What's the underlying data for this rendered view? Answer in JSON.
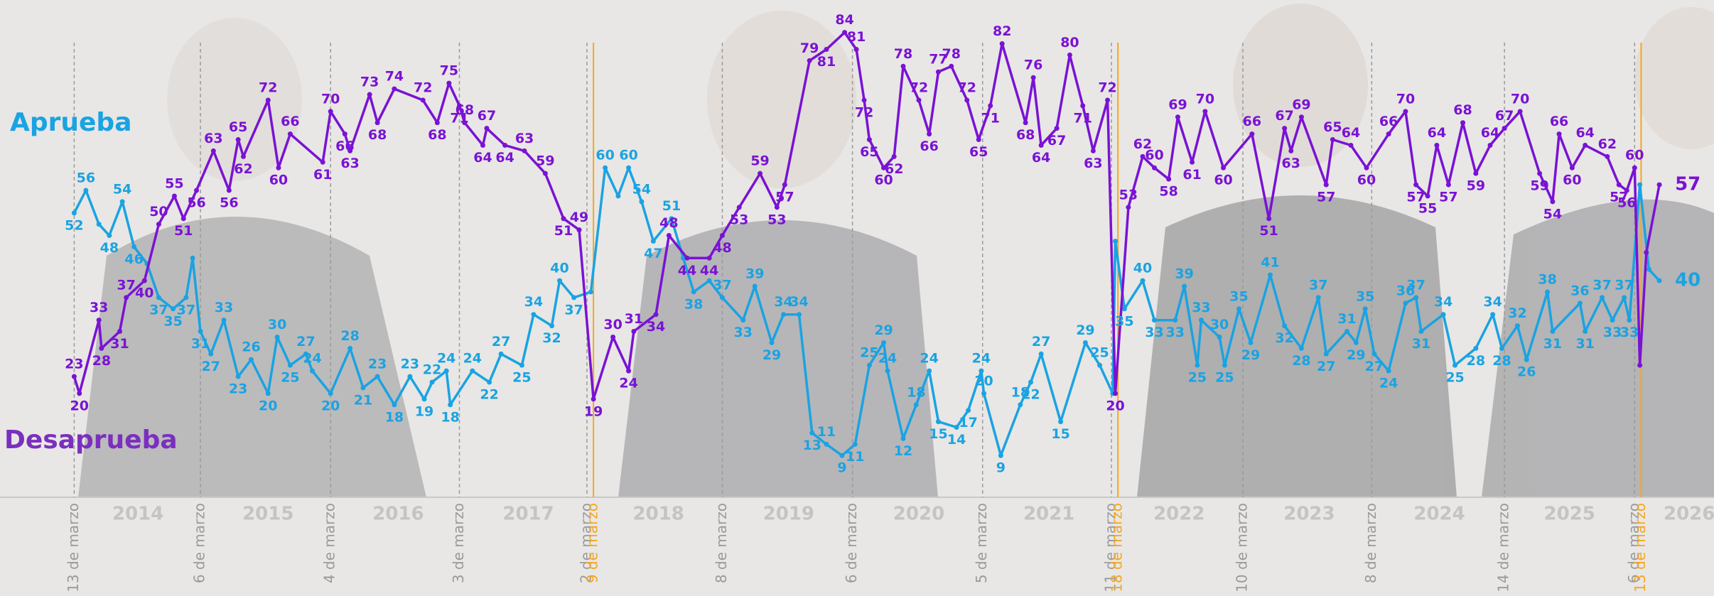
{
  "chart_data": {
    "type": "line",
    "xlim": [
      2013.61,
      2026.78
    ],
    "ylim": [
      1.6,
      89.75
    ],
    "xticks": [
      {
        "value": 2014.18,
        "label": "13 de marzo"
      },
      {
        "value": 2015.15,
        "label": "6 de marzo"
      },
      {
        "value": 2016.15,
        "label": "4 de marzo"
      },
      {
        "value": 2017.14,
        "label": "3 de marzo"
      },
      {
        "value": 2018.12,
        "label": "2 de marzo"
      },
      {
        "value": 2019.16,
        "label": "8 de marzo"
      },
      {
        "value": 2020.16,
        "label": "6 de marzo"
      },
      {
        "value": 2021.16,
        "label": "5 de marzo"
      },
      {
        "value": 2022.15,
        "label": "11 de marzo"
      },
      {
        "value": 2023.16,
        "label": "10 de marzo"
      },
      {
        "value": 2024.15,
        "label": "8 de marzo"
      },
      {
        "value": 2025.17,
        "label": "14 de marzo"
      },
      {
        "value": 2026.17,
        "label": "6 de marzo"
      }
    ],
    "tick_color": "#9a9a9a",
    "highlight_ticks": [
      {
        "value": 2018.17,
        "label": "9 de marzo"
      },
      {
        "value": 2022.2,
        "label": "18 de marzo"
      },
      {
        "value": 2026.22,
        "label": "13 de marzo"
      }
    ],
    "highlight_color": "#f5a623",
    "year_labels": [
      {
        "value": 2014.67,
        "label": "2014"
      },
      {
        "value": 2015.67,
        "label": "2015"
      },
      {
        "value": 2016.67,
        "label": "2016"
      },
      {
        "value": 2017.67,
        "label": "2017"
      },
      {
        "value": 2018.67,
        "label": "2018"
      },
      {
        "value": 2019.67,
        "label": "2019"
      },
      {
        "value": 2020.67,
        "label": "2020"
      },
      {
        "value": 2021.67,
        "label": "2021"
      },
      {
        "value": 2022.67,
        "label": "2022"
      },
      {
        "value": 2023.67,
        "label": "2023"
      },
      {
        "value": 2024.67,
        "label": "2024"
      },
      {
        "value": 2025.67,
        "label": "2025"
      },
      {
        "value": 2026.59,
        "label": "2026"
      }
    ],
    "series": [
      {
        "name": "Aprueba",
        "color": "#1aa3e2",
        "x": [
          2014.18,
          2014.27,
          2014.37,
          2014.45,
          2014.55,
          2014.64,
          2014.74,
          2014.83,
          2014.94,
          2015.04,
          2015.09,
          2015.15,
          2015.23,
          2015.33,
          2015.44,
          2015.54,
          2015.67,
          2015.74,
          2015.84,
          2015.96,
          2016.01,
          2016.15,
          2016.3,
          2016.4,
          2016.51,
          2016.64,
          2016.76,
          2016.87,
          2016.93,
          2017.04,
          2017.07,
          2017.24,
          2017.37,
          2017.46,
          2017.62,
          2017.71,
          2017.85,
          2017.91,
          2018.02,
          2018.15,
          2018.26,
          2018.36,
          2018.44,
          2018.54,
          2018.63,
          2018.77,
          2018.86,
          2018.94,
          2019.06,
          2019.16,
          2019.32,
          2019.41,
          2019.54,
          2019.63,
          2019.75,
          2019.85,
          2019.96,
          2020.08,
          2020.18,
          2020.29,
          2020.4,
          2020.43,
          2020.55,
          2020.65,
          2020.75,
          2020.82,
          2020.96,
          2021.05,
          2021.15,
          2021.17,
          2021.3,
          2021.45,
          2021.53,
          2021.61,
          2021.76,
          2021.95,
          2022.06,
          2022.16,
          2022.18,
          2022.25,
          2022.39,
          2022.48,
          2022.64,
          2022.71,
          2022.81,
          2022.84,
          2022.98,
          2023.02,
          2023.13,
          2023.22,
          2023.37,
          2023.48,
          2023.61,
          2023.74,
          2023.8,
          2023.96,
          2024.03,
          2024.1,
          2024.17,
          2024.28,
          2024.41,
          2024.49,
          2024.53,
          2024.7,
          2024.79,
          2024.95,
          2025.08,
          2025.15,
          2025.27,
          2025.34,
          2025.5,
          2025.54,
          2025.75,
          2025.79,
          2025.92,
          2026.0,
          2026.09,
          2026.13,
          2026.21,
          2026.28,
          2026.36
        ],
        "values": [
          52,
          56,
          50,
          48,
          54,
          46,
          43,
          37,
          35,
          37,
          44,
          31,
          27,
          33,
          23,
          26,
          20,
          30,
          25,
          27,
          24,
          20,
          28,
          21,
          23,
          18,
          23,
          19,
          22,
          24,
          18,
          24,
          22,
          27,
          25,
          34,
          32,
          40,
          37,
          38,
          60,
          55,
          60,
          54,
          47,
          51,
          44,
          38,
          40,
          37,
          33,
          39,
          29,
          34,
          34,
          13,
          11,
          9,
          11,
          25,
          29,
          24,
          12,
          18,
          24,
          15,
          14,
          17,
          24,
          20,
          9,
          18,
          22,
          27,
          15,
          29,
          25,
          20,
          47,
          35,
          40,
          33,
          33,
          39,
          25,
          33,
          30,
          25,
          35,
          29,
          41,
          32,
          28,
          37,
          27,
          31,
          29,
          35,
          27,
          24,
          36,
          37,
          31,
          34,
          25,
          28,
          34,
          28,
          32,
          26,
          38,
          31,
          36,
          31,
          37,
          33,
          37,
          33,
          57,
          42,
          40
        ],
        "value_labels": [
          "52",
          "56",
          null,
          "48",
          "54",
          "46",
          null,
          "37",
          "35",
          "37",
          null,
          "31",
          "27",
          "33",
          "23",
          "26",
          "20",
          "30",
          "25",
          "27",
          "24",
          "20",
          "28",
          "21",
          "23",
          "18",
          "23",
          "19",
          "22",
          "24",
          "18",
          "24",
          "22",
          "27",
          "25",
          "34",
          "32",
          "40",
          "37",
          null,
          "60",
          null,
          "60",
          "54",
          "47",
          "51",
          null,
          "38",
          null,
          "37",
          "33",
          "39",
          "29",
          "34",
          "34",
          "13",
          "11",
          "9",
          "11",
          "25",
          "29",
          "24",
          "12",
          "18",
          "24",
          "15",
          "14",
          "17",
          "24",
          "20",
          "9",
          "18",
          "22",
          "27",
          "15",
          "29",
          "25",
          null,
          null,
          "35",
          "40",
          "33",
          "33",
          "39",
          "25",
          "33",
          "30",
          "25",
          "35",
          "29",
          "41",
          "32",
          "28",
          "37",
          "27",
          "31",
          "29",
          "35",
          "27",
          "24",
          "36",
          "37",
          "31",
          "34",
          "25",
          "28",
          "34",
          "28",
          "32",
          "26",
          "38",
          "31",
          "36",
          "31",
          "37",
          "33",
          "37",
          "33",
          null,
          null,
          "40"
        ]
      },
      {
        "name": "Desaprueba",
        "color": "#7a12d4",
        "x": [
          2014.18,
          2014.22,
          2014.37,
          2014.39,
          2014.53,
          2014.58,
          2014.72,
          2014.83,
          2014.95,
          2015.02,
          2015.12,
          2015.25,
          2015.37,
          2015.44,
          2015.48,
          2015.67,
          2015.75,
          2015.84,
          2016.09,
          2016.15,
          2016.26,
          2016.3,
          2016.45,
          2016.51,
          2016.64,
          2016.86,
          2016.97,
          2017.06,
          2017.14,
          2017.18,
          2017.32,
          2017.35,
          2017.49,
          2017.64,
          2017.8,
          2017.94,
          2018.06,
          2018.17,
          2018.32,
          2018.44,
          2018.48,
          2018.65,
          2018.75,
          2018.89,
          2019.06,
          2019.16,
          2019.29,
          2019.45,
          2019.58,
          2019.64,
          2019.83,
          2019.96,
          2020.1,
          2020.19,
          2020.25,
          2020.29,
          2020.4,
          2020.48,
          2020.55,
          2020.67,
          2020.75,
          2020.82,
          2020.92,
          2021.04,
          2021.13,
          2021.22,
          2021.31,
          2021.49,
          2021.55,
          2021.61,
          2021.73,
          2021.83,
          2021.93,
          2022.01,
          2022.12,
          2022.18,
          2022.28,
          2022.39,
          2022.48,
          2022.59,
          2022.66,
          2022.77,
          2022.87,
          2023.01,
          2023.23,
          2023.36,
          2023.48,
          2023.53,
          2023.61,
          2023.8,
          2023.85,
          2023.99,
          2024.11,
          2024.28,
          2024.41,
          2024.49,
          2024.58,
          2024.65,
          2024.74,
          2024.85,
          2024.95,
          2025.06,
          2025.17,
          2025.29,
          2025.44,
          2025.54,
          2025.59,
          2025.69,
          2025.79,
          2025.96,
          2026.05,
          2026.11,
          2026.17,
          2026.21,
          2026.26,
          2026.36
        ],
        "values": [
          23,
          20,
          33,
          28,
          31,
          37,
          40,
          50,
          55,
          51,
          56,
          63,
          56,
          65,
          62,
          72,
          60,
          66,
          61,
          70,
          66,
          63,
          73,
          68,
          74,
          72,
          68,
          75,
          71,
          68,
          64,
          67,
          64,
          63,
          59,
          51,
          49,
          19,
          30,
          24,
          31,
          34,
          48,
          44,
          44,
          48,
          53,
          59,
          53,
          57,
          79,
          81,
          84,
          81,
          72,
          65,
          60,
          62,
          78,
          72,
          66,
          77,
          78,
          72,
          65,
          71,
          82,
          68,
          76,
          64,
          67,
          80,
          71,
          63,
          72,
          20,
          53,
          62,
          60,
          58,
          69,
          61,
          70,
          60,
          66,
          51,
          67,
          63,
          69,
          57,
          65,
          64,
          60,
          66,
          70,
          57,
          55,
          64,
          57,
          68,
          59,
          64,
          67,
          70,
          59,
          54,
          66,
          60,
          64,
          62,
          57,
          56,
          60,
          25,
          45,
          57
        ],
        "value_labels": [
          "23",
          "20",
          "33",
          "28",
          "31",
          "37",
          "40",
          "50",
          "55",
          "51",
          "56",
          "63",
          "56",
          "65",
          "62",
          "72",
          "60",
          "66",
          "61",
          "70",
          "66",
          "63",
          "73",
          "68",
          "74",
          "72",
          "68",
          "75",
          "71",
          "68",
          "64",
          "67",
          "64",
          "63",
          "59",
          "51",
          "49",
          "19",
          "30",
          "24",
          "31",
          "34",
          "48",
          "44",
          "44",
          "48",
          "53",
          "59",
          "53",
          "57",
          "79",
          "81",
          "84",
          "81",
          "72",
          "65",
          "60",
          "62",
          "78",
          "72",
          "66",
          "77",
          "78",
          "72",
          "65",
          "71",
          "82",
          "68",
          "76",
          "64",
          "67",
          "80",
          "71",
          "63",
          "72",
          "20",
          "53",
          "62",
          "60",
          "58",
          "69",
          "61",
          "70",
          "60",
          "66",
          "51",
          "67",
          "63",
          "69",
          "57",
          "65",
          "64",
          "60",
          "66",
          "70",
          "57",
          "55",
          "64",
          "57",
          "68",
          "59",
          "64",
          "67",
          "70",
          "59",
          "54",
          "66",
          "60",
          "64",
          "62",
          "57",
          "56",
          "60",
          null,
          null,
          "57"
        ]
      }
    ]
  }
}
